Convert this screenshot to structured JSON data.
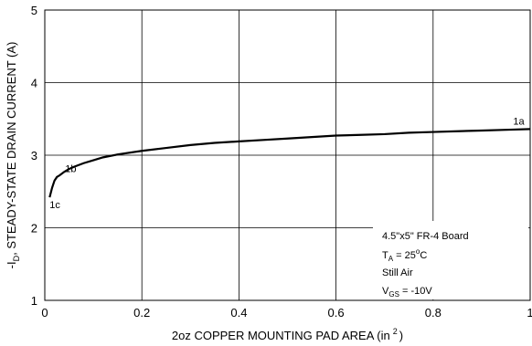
{
  "chart_data": {
    "type": "line",
    "title": "",
    "xlabel": {
      "main": "2oz COPPER MOUNTING PAD AREA (in",
      "sup": "2",
      "close": ")"
    },
    "ylabel": {
      "pre": "-I",
      "sub": "D",
      "post": ", STEADY-STATE DRAIN CURRENT (A)"
    },
    "xlim": [
      0,
      1
    ],
    "ylim": [
      1,
      5
    ],
    "x_ticks": [
      "0",
      "0.2",
      "0.4",
      "0.6",
      "0.8",
      "1"
    ],
    "y_ticks": [
      "1",
      "2",
      "3",
      "4",
      "5"
    ],
    "grid": true,
    "series": [
      {
        "x": [
          0.01,
          0.015,
          0.02,
          0.025,
          0.03,
          0.04,
          0.05,
          0.06,
          0.08,
          0.1,
          0.12,
          0.15,
          0.2,
          0.25,
          0.3,
          0.35,
          0.4,
          0.45,
          0.5,
          0.55,
          0.6,
          0.65,
          0.7,
          0.75,
          0.8,
          0.85,
          0.9,
          0.95,
          1.0
        ],
        "y": [
          2.42,
          2.55,
          2.65,
          2.7,
          2.72,
          2.77,
          2.81,
          2.84,
          2.89,
          2.93,
          2.97,
          3.01,
          3.06,
          3.1,
          3.14,
          3.17,
          3.19,
          3.21,
          3.23,
          3.25,
          3.27,
          3.28,
          3.29,
          3.31,
          3.32,
          3.33,
          3.34,
          3.35,
          3.36
        ]
      }
    ],
    "annotations": [
      {
        "text": "1a",
        "x": 0.965,
        "y": 3.47
      },
      {
        "text": "1b",
        "x": 0.042,
        "y": 2.82
      },
      {
        "text": "1c",
        "x": 0.01,
        "y": 2.32
      }
    ],
    "info_box": {
      "line1": "4.5\"x5\" FR-4 Board",
      "line2": {
        "pre": "T",
        "sub": "A",
        "post": " = 25",
        "sup": "o",
        "end": "C"
      },
      "line3": "Still Air",
      "line4": {
        "pre": "V",
        "sub": "GS",
        "post": " = -10V"
      }
    }
  }
}
